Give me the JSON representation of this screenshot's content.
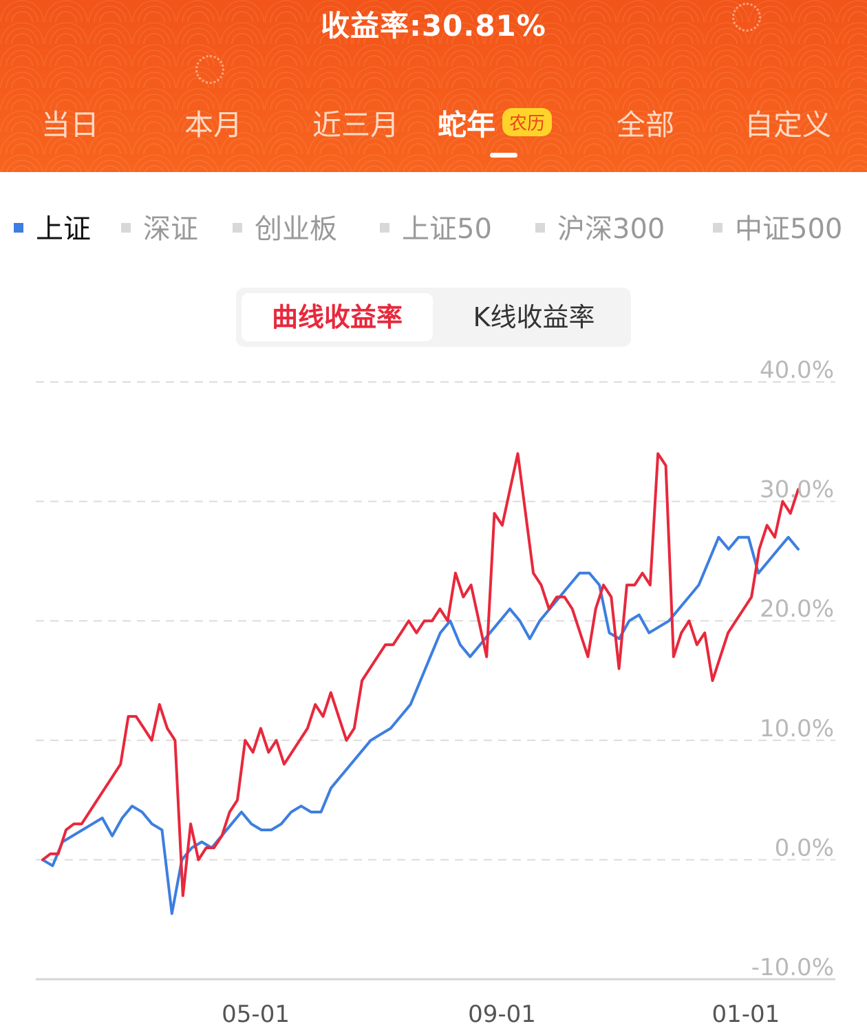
{
  "header": {
    "yield_label": "收益率:30.81%",
    "tabs": [
      {
        "label": "当日"
      },
      {
        "label": "本月"
      },
      {
        "label": "近三月"
      },
      {
        "label": "蛇年",
        "badge": "农历",
        "active": true
      },
      {
        "label": "全部"
      },
      {
        "label": "自定义"
      }
    ],
    "colors": {
      "background": "#f55d1e",
      "badge_bg": "#ffd42a"
    }
  },
  "indices": [
    {
      "label": "上证",
      "active": true
    },
    {
      "label": "深证"
    },
    {
      "label": "创业板"
    },
    {
      "label": "上证50"
    },
    {
      "label": "沪深300"
    },
    {
      "label": "中证500"
    }
  ],
  "segment": {
    "active": "曲线收益率",
    "inactive": "K线收益率"
  },
  "chart_data": {
    "type": "line",
    "ylim": [
      -10,
      40
    ],
    "y_ticks": [
      "40.0%",
      "30.0%",
      "20.0%",
      "10.0%",
      "0.0%",
      "-10.0%"
    ],
    "y_tick_values": [
      40,
      30,
      20,
      10,
      0,
      -10
    ],
    "x_ticks": [
      "05-01",
      "09-01",
      "01-01"
    ],
    "x_tick_positions": [
      0.232,
      0.54,
      0.845
    ],
    "grid": true,
    "colors": {
      "portfolio": "#e8283c",
      "index": "#3d7ee0"
    },
    "series": [
      {
        "key": "portfolio",
        "values": [
          0,
          0.5,
          0.5,
          2.5,
          3,
          3,
          4,
          5,
          6,
          7,
          8,
          12,
          12,
          11,
          10,
          13,
          11,
          10,
          -3,
          3,
          0,
          1,
          1,
          2,
          4,
          5,
          10,
          9,
          11,
          9,
          10,
          8,
          9,
          10,
          11,
          13,
          12,
          14,
          12,
          10,
          11,
          15,
          16,
          17,
          18,
          18,
          19,
          20,
          19,
          20,
          20,
          21,
          20,
          24,
          22,
          23,
          20,
          17,
          29,
          28,
          31,
          34,
          29,
          24,
          23,
          21,
          22,
          22,
          21,
          19,
          17,
          21,
          23,
          22,
          16,
          23,
          23,
          24,
          23,
          34,
          33,
          17,
          19,
          20,
          18,
          19,
          15,
          17,
          19,
          20,
          21,
          22,
          26,
          28,
          27,
          30,
          29,
          31
        ]
      },
      {
        "key": "index",
        "values": [
          0,
          -0.5,
          1.5,
          2,
          2.5,
          3,
          3.5,
          2,
          3.5,
          4.5,
          4,
          3,
          2.5,
          -4.5,
          0,
          1,
          1.5,
          1,
          2,
          3,
          4,
          3,
          2.5,
          2.5,
          3,
          4,
          4.5,
          4,
          4,
          6,
          7,
          8,
          9,
          10,
          10.5,
          11,
          12,
          13,
          15,
          17,
          19,
          20,
          18,
          17,
          18,
          19,
          20,
          21,
          20,
          18.5,
          20,
          21,
          22,
          23,
          24,
          24,
          23,
          19,
          18.5,
          20,
          20.5,
          19,
          19.5,
          20,
          21,
          22,
          23,
          25,
          27,
          26,
          27,
          27,
          24,
          25,
          26,
          27,
          26
        ]
      }
    ]
  }
}
